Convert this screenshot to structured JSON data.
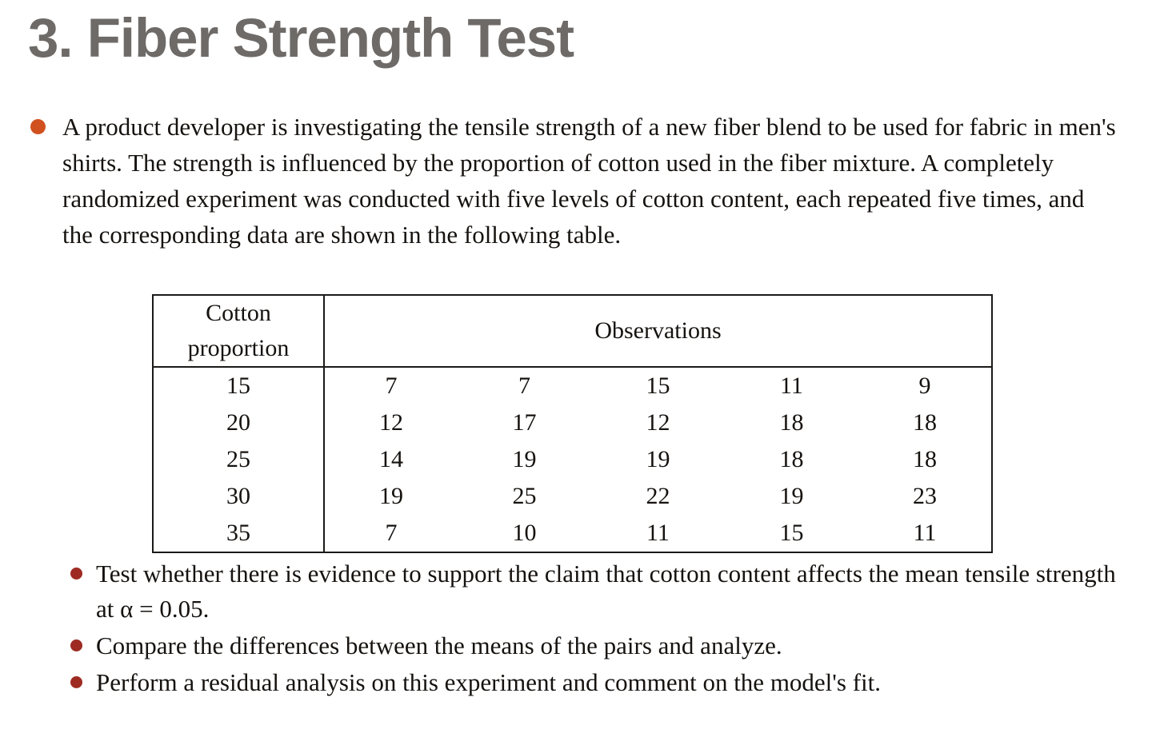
{
  "slide": {
    "title": "3. Fiber Strength Test",
    "intro_text": "A product developer is investigating the tensile strength of a new fiber blend to be used for fabric in men's shirts. The strength is influenced by the proportion of cotton used in the fiber mixture. A completely randomized experiment was conducted with five levels of cotton content, each repeated five times, and the corresponding data are shown in the following table.",
    "table": {
      "col1_header": "Cotton proportion",
      "col2_header": "Observations",
      "rows": [
        [
          "15",
          "7",
          "7",
          "15",
          "11",
          "9"
        ],
        [
          "20",
          "12",
          "17",
          "12",
          "18",
          "18"
        ],
        [
          "25",
          "14",
          "19",
          "19",
          "18",
          "18"
        ],
        [
          "30",
          "19",
          "25",
          "22",
          "19",
          "23"
        ],
        [
          "35",
          "7",
          "10",
          "11",
          "15",
          "11"
        ]
      ]
    },
    "sub_bullets": [
      "Test whether there is evidence to support the claim that cotton content affects the mean tensile strength at α = 0.05.",
      "Compare the differences between the means of the pairs and analyze.",
      "Perform a residual analysis on this experiment and comment on the model's fit."
    ],
    "colors": {
      "title": "#6e6a67",
      "bullet_primary": "#d1501f",
      "bullet_secondary": "#9e2b22",
      "text": "#15120f",
      "table_border": "#1c1a19"
    }
  }
}
